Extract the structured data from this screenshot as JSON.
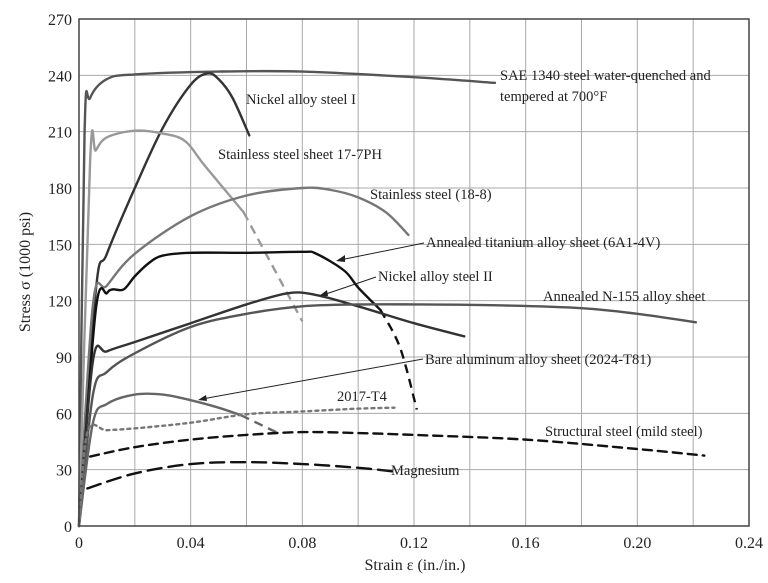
{
  "chart_data": {
    "type": "line",
    "xlabel": "Strain ε (in./in.)",
    "ylabel": "Stress σ (1000 psi)",
    "xlim": [
      0,
      0.24
    ],
    "ylim": [
      0,
      270
    ],
    "xticks": [
      "0",
      "0.04",
      "0.08",
      "0.12",
      "0.16",
      "0.20",
      "0.24"
    ],
    "yticks": [
      "0",
      "30",
      "60",
      "90",
      "120",
      "150",
      "180",
      "210",
      "240",
      "270"
    ],
    "grid": true,
    "series": [
      {
        "name": "SAE 1340 steel water-quenched and tempered at 700°F",
        "color": "#555555",
        "style": "solid",
        "points": [
          [
            0,
            0
          ],
          [
            0.002,
            210
          ],
          [
            0.004,
            228
          ],
          [
            0.01,
            238
          ],
          [
            0.02,
            240.5
          ],
          [
            0.05,
            242
          ],
          [
            0.08,
            242
          ],
          [
            0.12,
            239
          ],
          [
            0.149,
            236
          ]
        ]
      },
      {
        "name": "Nickel alloy steel I",
        "color": "#333333",
        "style": "solid",
        "points": [
          [
            0,
            0
          ],
          [
            0.006,
            125
          ],
          [
            0.01,
            145
          ],
          [
            0.02,
            180
          ],
          [
            0.03,
            212
          ],
          [
            0.04,
            235
          ],
          [
            0.046,
            241
          ],
          [
            0.05,
            238
          ],
          [
            0.055,
            228
          ],
          [
            0.061,
            208
          ]
        ]
      },
      {
        "name": "Stainless steel sheet 17-7PH",
        "color": "#999999",
        "style": "solid",
        "points": [
          [
            0,
            0
          ],
          [
            0.004,
            195
          ],
          [
            0.006,
            200
          ],
          [
            0.01,
            207
          ],
          [
            0.02,
            210.5
          ],
          [
            0.03,
            209
          ],
          [
            0.038,
            205
          ],
          [
            0.045,
            192
          ],
          [
            0.059,
            167
          ]
        ],
        "dashed_extension": [
          [
            0.059,
            167
          ],
          [
            0.08,
            109
          ]
        ]
      },
      {
        "name": "Stainless steel (18-8)",
        "color": "#777777",
        "style": "solid",
        "points": [
          [
            0,
            0
          ],
          [
            0.005,
            118
          ],
          [
            0.01,
            128
          ],
          [
            0.02,
            145
          ],
          [
            0.04,
            165
          ],
          [
            0.06,
            176
          ],
          [
            0.08,
            180
          ],
          [
            0.09,
            179
          ],
          [
            0.1,
            175
          ],
          [
            0.11,
            167
          ],
          [
            0.118,
            155
          ]
        ]
      },
      {
        "name": "Annealed titanium alloy sheet (6A1-4V)",
        "color": "#111111",
        "style": "solid",
        "points": [
          [
            0,
            0
          ],
          [
            0.006,
            115
          ],
          [
            0.01,
            124
          ],
          [
            0.012,
            126
          ],
          [
            0.016,
            126
          ],
          [
            0.02,
            133
          ],
          [
            0.025,
            140
          ],
          [
            0.03,
            144
          ],
          [
            0.04,
            145.5
          ],
          [
            0.06,
            145.5
          ],
          [
            0.08,
            146
          ],
          [
            0.085,
            145
          ],
          [
            0.095,
            136
          ],
          [
            0.1,
            127
          ],
          [
            0.108,
            115
          ]
        ],
        "dashed_extension": [
          [
            0.108,
            115
          ],
          [
            0.115,
            95
          ],
          [
            0.121,
            62
          ]
        ]
      },
      {
        "name": "Nickel alloy steel II",
        "color": "#333333",
        "style": "solid",
        "points": [
          [
            0,
            0
          ],
          [
            0.005,
            88
          ],
          [
            0.01,
            93
          ],
          [
            0.02,
            98
          ],
          [
            0.04,
            108
          ],
          [
            0.06,
            118
          ],
          [
            0.075,
            124
          ],
          [
            0.085,
            123
          ],
          [
            0.1,
            117
          ],
          [
            0.12,
            108
          ],
          [
            0.138,
            101
          ]
        ]
      },
      {
        "name": "Annealed N-155 alloy sheet",
        "color": "#555555",
        "style": "solid",
        "points": [
          [
            0,
            0
          ],
          [
            0.005,
            70
          ],
          [
            0.01,
            82
          ],
          [
            0.02,
            92
          ],
          [
            0.04,
            106
          ],
          [
            0.06,
            113
          ],
          [
            0.08,
            117
          ],
          [
            0.1,
            118
          ],
          [
            0.12,
            118
          ],
          [
            0.15,
            117.5
          ],
          [
            0.18,
            116
          ],
          [
            0.2,
            113
          ],
          [
            0.221,
            108.5
          ]
        ]
      },
      {
        "name": "Bare aluminum alloy sheet (2024-T81)",
        "color": "#666666",
        "style": "solid",
        "points": [
          [
            0,
            0
          ],
          [
            0.005,
            55
          ],
          [
            0.01,
            65
          ],
          [
            0.02,
            70
          ],
          [
            0.03,
            70
          ],
          [
            0.04,
            67
          ],
          [
            0.05,
            63
          ],
          [
            0.058,
            59
          ]
        ],
        "dashed_extension": [
          [
            0.058,
            59
          ],
          [
            0.072,
            49
          ]
        ]
      },
      {
        "name": "2017-T4",
        "color": "#777777",
        "style": "dotted",
        "points": [
          [
            0,
            0
          ],
          [
            0.003,
            50
          ],
          [
            0.01,
            51
          ],
          [
            0.02,
            52
          ],
          [
            0.04,
            55
          ],
          [
            0.06,
            59.5
          ],
          [
            0.08,
            61
          ],
          [
            0.1,
            62.5
          ],
          [
            0.113,
            63
          ]
        ]
      },
      {
        "name": "Structural steel (mild steel)",
        "color": "#111111",
        "style": "dashed",
        "points": [
          [
            0.004,
            37
          ],
          [
            0.02,
            42
          ],
          [
            0.04,
            46
          ],
          [
            0.06,
            48.5
          ],
          [
            0.08,
            50
          ],
          [
            0.1,
            49.5
          ],
          [
            0.12,
            48.5
          ],
          [
            0.16,
            46
          ],
          [
            0.2,
            41
          ],
          [
            0.224,
            37.5
          ]
        ]
      },
      {
        "name": "Magnesium",
        "color": "#111111",
        "style": "longdash",
        "points": [
          [
            0.003,
            20
          ],
          [
            0.02,
            28
          ],
          [
            0.04,
            33
          ],
          [
            0.06,
            34
          ],
          [
            0.08,
            33
          ],
          [
            0.1,
            31
          ],
          [
            0.113,
            29
          ]
        ]
      }
    ],
    "annotations": {
      "sae_line1": "SAE 1340 steel water-quenched and",
      "sae_line2": "tempered at 700°F",
      "nickel1": "Nickel alloy steel I",
      "ss177": "Stainless steel sheet 17-7PH",
      "ss188": "Stainless steel (18-8)",
      "titanium": "Annealed titanium alloy sheet (6A1-4V)",
      "nickel2": "Nickel alloy steel II",
      "n155": "Annealed N-155 alloy sheet",
      "aluminum": "Bare aluminum alloy sheet (2024-T81)",
      "t4": "2017-T4",
      "structural": "Structural steel (mild steel)",
      "magnesium": "Magnesium"
    }
  }
}
